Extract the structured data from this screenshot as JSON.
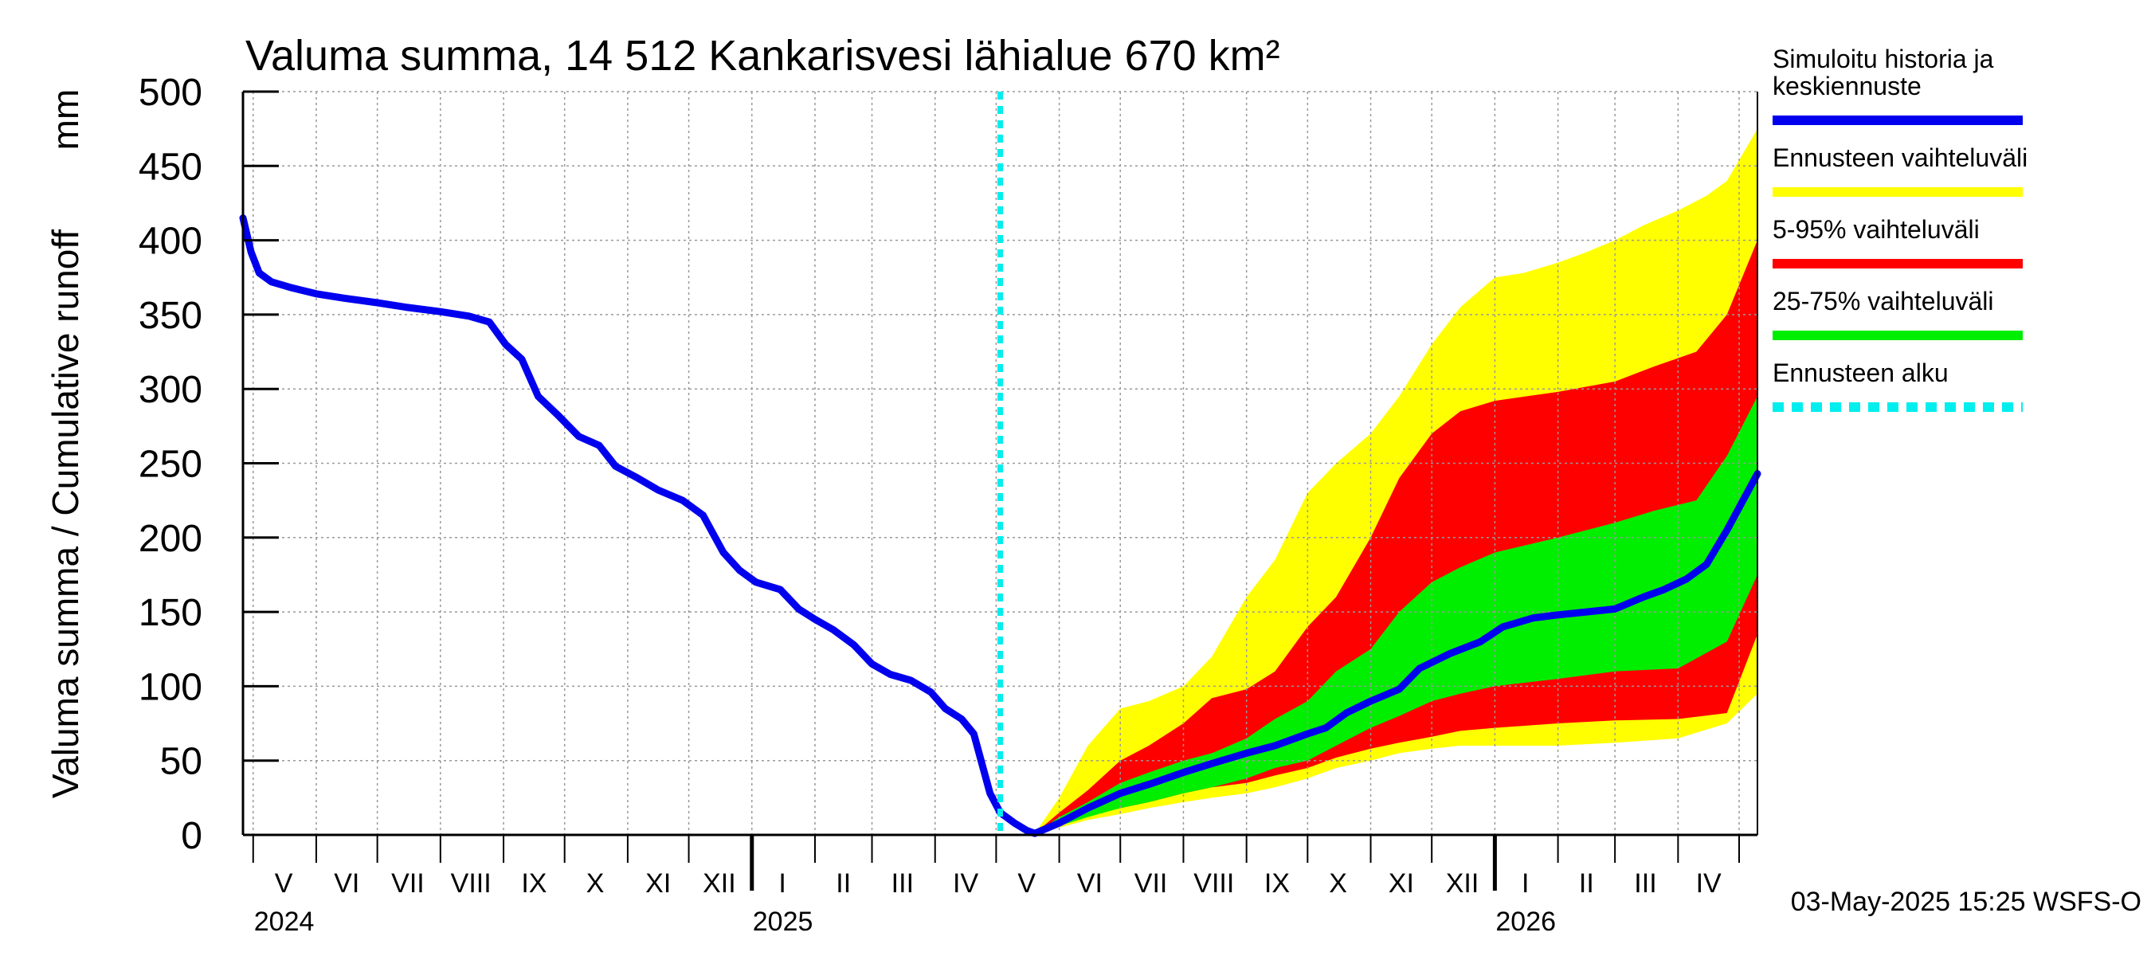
{
  "title": "Valuma summa, 14 512 Kankarisvesi lähialue 670 km²",
  "timestamp": "03-May-2025 15:25 WSFS-O",
  "colors": {
    "history": "#0000ee",
    "range_full": "#ffff00",
    "range_5_95": "#ff0000",
    "range_25_75": "#00ee00",
    "forecast_start": "#00eeee",
    "grid": "#999999"
  },
  "chart_data": {
    "type": "area",
    "title": "Valuma summa, 14 512 Kankarisvesi lähialue 670 km²",
    "ylabel": "Valuma summa / Cumulative runoff",
    "yunit": "mm",
    "ylim": [
      0,
      500
    ],
    "yticks": [
      0,
      50,
      100,
      150,
      200,
      250,
      300,
      350,
      400,
      450,
      500
    ],
    "xlim": [
      "2024-04-26",
      "2026-05-10"
    ],
    "grid": true,
    "legend_position": "right",
    "month_labels": [
      {
        "label": "V",
        "mid": "2024-05-16"
      },
      {
        "label": "VI",
        "mid": "2024-06-16"
      },
      {
        "label": "VII",
        "mid": "2024-07-16"
      },
      {
        "label": "VIII",
        "mid": "2024-08-16"
      },
      {
        "label": "IX",
        "mid": "2024-09-16"
      },
      {
        "label": "X",
        "mid": "2024-10-16"
      },
      {
        "label": "XI",
        "mid": "2024-11-16"
      },
      {
        "label": "XII",
        "mid": "2024-12-16"
      },
      {
        "label": "I",
        "mid": "2025-01-16"
      },
      {
        "label": "II",
        "mid": "2025-02-15"
      },
      {
        "label": "III",
        "mid": "2025-03-16"
      },
      {
        "label": "IV",
        "mid": "2025-04-16"
      },
      {
        "label": "V",
        "mid": "2025-05-16"
      },
      {
        "label": "VI",
        "mid": "2025-06-16"
      },
      {
        "label": "VII",
        "mid": "2025-07-16"
      },
      {
        "label": "VIII",
        "mid": "2025-08-16"
      },
      {
        "label": "IX",
        "mid": "2025-09-16"
      },
      {
        "label": "X",
        "mid": "2025-10-16"
      },
      {
        "label": "XI",
        "mid": "2025-11-16"
      },
      {
        "label": "XII",
        "mid": "2025-12-16"
      },
      {
        "label": "I",
        "mid": "2026-01-16"
      },
      {
        "label": "II",
        "mid": "2026-02-15"
      },
      {
        "label": "III",
        "mid": "2026-03-16"
      },
      {
        "label": "IV",
        "mid": "2026-04-16"
      }
    ],
    "month_starts": [
      "2024-05-01",
      "2024-06-01",
      "2024-07-01",
      "2024-08-01",
      "2024-09-01",
      "2024-10-01",
      "2024-11-01",
      "2024-12-01",
      "2025-01-01",
      "2025-02-01",
      "2025-03-01",
      "2025-04-01",
      "2025-05-01",
      "2025-06-01",
      "2025-07-01",
      "2025-08-01",
      "2025-09-01",
      "2025-10-01",
      "2025-11-01",
      "2025-12-01",
      "2026-01-01",
      "2026-02-01",
      "2026-03-01",
      "2026-04-01",
      "2026-05-01"
    ],
    "year_labels": [
      {
        "label": "2024",
        "date": "2024-05-01"
      },
      {
        "label": "2025",
        "date": "2025-01-01"
      },
      {
        "label": "2026",
        "date": "2026-01-01"
      }
    ],
    "forecast_start": "2025-05-03",
    "series": [
      {
        "name": "Simuloitu historia ja keskiennuste",
        "kind": "line",
        "points": [
          [
            "2024-04-26",
            415
          ],
          [
            "2024-04-30",
            392
          ],
          [
            "2024-05-04",
            378
          ],
          [
            "2024-05-10",
            372
          ],
          [
            "2024-05-20",
            368
          ],
          [
            "2024-06-01",
            364
          ],
          [
            "2024-06-15",
            361
          ],
          [
            "2024-07-01",
            358
          ],
          [
            "2024-07-15",
            355
          ],
          [
            "2024-08-01",
            352
          ],
          [
            "2024-08-15",
            349
          ],
          [
            "2024-08-25",
            345
          ],
          [
            "2024-09-02",
            330
          ],
          [
            "2024-09-10",
            320
          ],
          [
            "2024-09-18",
            295
          ],
          [
            "2024-09-28",
            282
          ],
          [
            "2024-10-08",
            268
          ],
          [
            "2024-10-18",
            262
          ],
          [
            "2024-10-26",
            248
          ],
          [
            "2024-11-06",
            240
          ],
          [
            "2024-11-16",
            232
          ],
          [
            "2024-11-28",
            225
          ],
          [
            "2024-12-08",
            215
          ],
          [
            "2024-12-18",
            190
          ],
          [
            "2024-12-26",
            178
          ],
          [
            "2025-01-03",
            170
          ],
          [
            "2025-01-15",
            165
          ],
          [
            "2025-01-24",
            152
          ],
          [
            "2025-02-01",
            145
          ],
          [
            "2025-02-10",
            138
          ],
          [
            "2025-02-20",
            128
          ],
          [
            "2025-03-01",
            115
          ],
          [
            "2025-03-10",
            108
          ],
          [
            "2025-03-20",
            104
          ],
          [
            "2025-03-30",
            96
          ],
          [
            "2025-04-06",
            85
          ],
          [
            "2025-04-14",
            78
          ],
          [
            "2025-04-20",
            68
          ],
          [
            "2025-04-24",
            48
          ],
          [
            "2025-04-28",
            28
          ],
          [
            "2025-05-03",
            15
          ],
          [
            "2025-05-10",
            8
          ],
          [
            "2025-05-16",
            3
          ],
          [
            "2025-05-20",
            1
          ],
          [
            "2025-06-01",
            8
          ],
          [
            "2025-06-15",
            18
          ],
          [
            "2025-07-01",
            28
          ],
          [
            "2025-07-15",
            34
          ],
          [
            "2025-08-01",
            42
          ],
          [
            "2025-08-15",
            48
          ],
          [
            "2025-09-01",
            55
          ],
          [
            "2025-09-15",
            60
          ],
          [
            "2025-10-01",
            68
          ],
          [
            "2025-10-10",
            72
          ],
          [
            "2025-10-20",
            82
          ],
          [
            "2025-11-01",
            90
          ],
          [
            "2025-11-15",
            98
          ],
          [
            "2025-11-25",
            112
          ],
          [
            "2025-12-10",
            122
          ],
          [
            "2025-12-25",
            130
          ],
          [
            "2026-01-05",
            140
          ],
          [
            "2026-01-20",
            146
          ],
          [
            "2026-02-01",
            148
          ],
          [
            "2026-02-15",
            150
          ],
          [
            "2026-03-01",
            152
          ],
          [
            "2026-03-15",
            160
          ],
          [
            "2026-03-25",
            165
          ],
          [
            "2026-04-05",
            172
          ],
          [
            "2026-04-15",
            182
          ],
          [
            "2026-04-25",
            205
          ],
          [
            "2026-05-10",
            243
          ]
        ]
      },
      {
        "name": "Ennusteen vaihteluväli",
        "kind": "band",
        "upper": [
          [
            "2025-05-20",
            1
          ],
          [
            "2025-06-01",
            25
          ],
          [
            "2025-06-15",
            60
          ],
          [
            "2025-07-01",
            85
          ],
          [
            "2025-07-15",
            90
          ],
          [
            "2025-08-01",
            100
          ],
          [
            "2025-08-15",
            120
          ],
          [
            "2025-09-01",
            160
          ],
          [
            "2025-09-15",
            185
          ],
          [
            "2025-10-01",
            230
          ],
          [
            "2025-10-15",
            250
          ],
          [
            "2025-11-01",
            270
          ],
          [
            "2025-11-15",
            295
          ],
          [
            "2025-12-01",
            330
          ],
          [
            "2025-12-15",
            355
          ],
          [
            "2026-01-01",
            375
          ],
          [
            "2026-01-15",
            378
          ],
          [
            "2026-02-01",
            385
          ],
          [
            "2026-02-15",
            392
          ],
          [
            "2026-03-01",
            400
          ],
          [
            "2026-03-15",
            410
          ],
          [
            "2026-04-01",
            420
          ],
          [
            "2026-04-15",
            430
          ],
          [
            "2026-04-25",
            440
          ],
          [
            "2026-05-10",
            475
          ]
        ],
        "lower": [
          [
            "2025-05-20",
            1
          ],
          [
            "2025-06-01",
            5
          ],
          [
            "2025-06-15",
            10
          ],
          [
            "2025-07-01",
            14
          ],
          [
            "2025-07-15",
            18
          ],
          [
            "2025-08-01",
            22
          ],
          [
            "2025-08-15",
            25
          ],
          [
            "2025-09-01",
            28
          ],
          [
            "2025-09-15",
            32
          ],
          [
            "2025-10-01",
            38
          ],
          [
            "2025-10-15",
            45
          ],
          [
            "2025-11-01",
            50
          ],
          [
            "2025-11-15",
            55
          ],
          [
            "2025-12-01",
            58
          ],
          [
            "2025-12-15",
            60
          ],
          [
            "2026-01-01",
            60
          ],
          [
            "2026-02-01",
            60
          ],
          [
            "2026-03-01",
            62
          ],
          [
            "2026-04-01",
            65
          ],
          [
            "2026-04-25",
            75
          ],
          [
            "2026-05-10",
            95
          ]
        ]
      },
      {
        "name": "5-95% vaihteluväli",
        "kind": "band",
        "upper": [
          [
            "2025-05-20",
            1
          ],
          [
            "2025-06-01",
            15
          ],
          [
            "2025-06-15",
            30
          ],
          [
            "2025-07-01",
            50
          ],
          [
            "2025-07-15",
            60
          ],
          [
            "2025-08-01",
            75
          ],
          [
            "2025-08-15",
            92
          ],
          [
            "2025-09-01",
            98
          ],
          [
            "2025-09-15",
            110
          ],
          [
            "2025-10-01",
            140
          ],
          [
            "2025-10-15",
            160
          ],
          [
            "2025-11-01",
            200
          ],
          [
            "2025-11-15",
            240
          ],
          [
            "2025-12-01",
            270
          ],
          [
            "2025-12-15",
            285
          ],
          [
            "2026-01-01",
            292
          ],
          [
            "2026-02-01",
            298
          ],
          [
            "2026-03-01",
            305
          ],
          [
            "2026-03-20",
            315
          ],
          [
            "2026-04-10",
            325
          ],
          [
            "2026-04-25",
            350
          ],
          [
            "2026-05-10",
            400
          ]
        ],
        "lower": [
          [
            "2025-05-20",
            1
          ],
          [
            "2025-06-01",
            8
          ],
          [
            "2025-06-15",
            14
          ],
          [
            "2025-07-01",
            18
          ],
          [
            "2025-07-15",
            22
          ],
          [
            "2025-08-01",
            28
          ],
          [
            "2025-08-15",
            32
          ],
          [
            "2025-09-01",
            35
          ],
          [
            "2025-09-15",
            40
          ],
          [
            "2025-10-01",
            45
          ],
          [
            "2025-10-15",
            52
          ],
          [
            "2025-11-01",
            58
          ],
          [
            "2025-11-15",
            62
          ],
          [
            "2025-12-01",
            66
          ],
          [
            "2025-12-15",
            70
          ],
          [
            "2026-01-01",
            72
          ],
          [
            "2026-02-01",
            75
          ],
          [
            "2026-03-01",
            77
          ],
          [
            "2026-04-01",
            78
          ],
          [
            "2026-04-25",
            82
          ],
          [
            "2026-05-10",
            135
          ]
        ]
      },
      {
        "name": "25-75% vaihteluväli",
        "kind": "band",
        "upper": [
          [
            "2025-05-20",
            1
          ],
          [
            "2025-06-01",
            12
          ],
          [
            "2025-06-15",
            22
          ],
          [
            "2025-07-01",
            35
          ],
          [
            "2025-07-15",
            42
          ],
          [
            "2025-08-01",
            50
          ],
          [
            "2025-08-15",
            55
          ],
          [
            "2025-09-01",
            65
          ],
          [
            "2025-09-15",
            78
          ],
          [
            "2025-10-01",
            90
          ],
          [
            "2025-10-15",
            110
          ],
          [
            "2025-11-01",
            125
          ],
          [
            "2025-11-15",
            150
          ],
          [
            "2025-12-01",
            170
          ],
          [
            "2025-12-15",
            180
          ],
          [
            "2026-01-01",
            190
          ],
          [
            "2026-02-01",
            200
          ],
          [
            "2026-03-01",
            210
          ],
          [
            "2026-03-20",
            218
          ],
          [
            "2026-04-10",
            225
          ],
          [
            "2026-04-25",
            255
          ],
          [
            "2026-05-10",
            295
          ]
        ],
        "lower": [
          [
            "2025-05-20",
            1
          ],
          [
            "2025-06-01",
            6
          ],
          [
            "2025-06-15",
            12
          ],
          [
            "2025-07-01",
            18
          ],
          [
            "2025-07-15",
            22
          ],
          [
            "2025-08-01",
            28
          ],
          [
            "2025-08-15",
            32
          ],
          [
            "2025-09-01",
            38
          ],
          [
            "2025-09-15",
            45
          ],
          [
            "2025-10-01",
            50
          ],
          [
            "2025-10-15",
            60
          ],
          [
            "2025-11-01",
            72
          ],
          [
            "2025-11-15",
            80
          ],
          [
            "2025-12-01",
            90
          ],
          [
            "2025-12-15",
            95
          ],
          [
            "2026-01-01",
            100
          ],
          [
            "2026-02-01",
            105
          ],
          [
            "2026-03-01",
            110
          ],
          [
            "2026-04-01",
            112
          ],
          [
            "2026-04-25",
            130
          ],
          [
            "2026-05-10",
            175
          ]
        ]
      }
    ]
  },
  "legend": [
    {
      "label": "Simuloitu historia ja keskiennuste",
      "color_key": "history",
      "style": "solid"
    },
    {
      "label": "Ennusteen vaihteluväli",
      "color_key": "range_full",
      "style": "solid"
    },
    {
      "label": "5-95% vaihteluväli",
      "color_key": "range_5_95",
      "style": "solid"
    },
    {
      "label": "25-75% vaihteluväli",
      "color_key": "range_25_75",
      "style": "solid"
    },
    {
      "label": "Ennusteen alku",
      "color_key": "forecast_start",
      "style": "dashed"
    }
  ]
}
